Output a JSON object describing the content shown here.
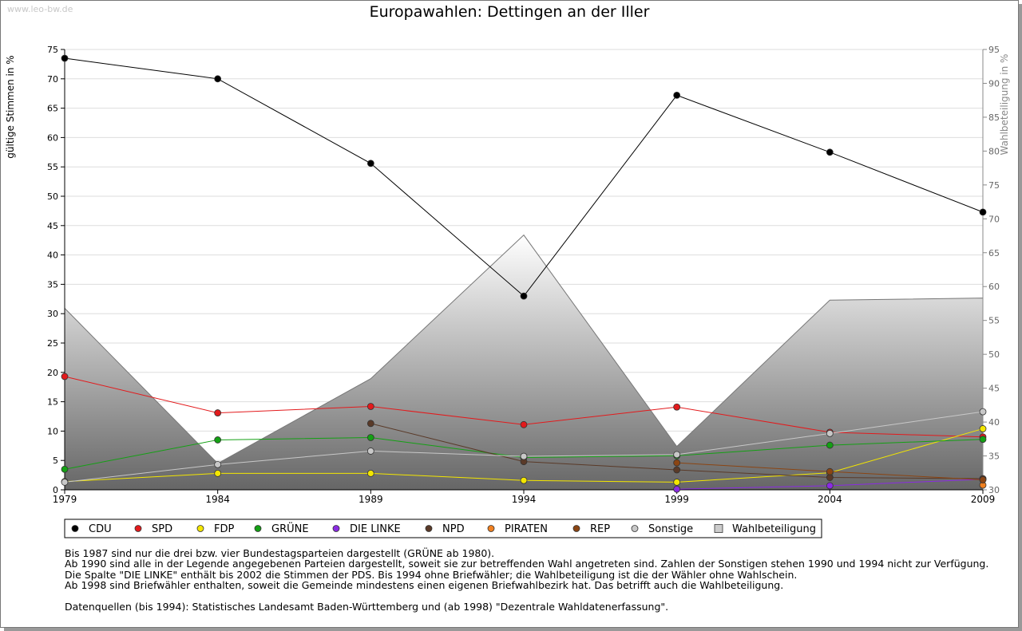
{
  "watermark": "www.leo-bw.de",
  "title": "Europawahlen: Dettingen an der Iller",
  "y_left_label": "gültige Stimmen in %",
  "y_right_label": "Wahlbeteiligung in %",
  "colors": {
    "CDU": "#000000",
    "SPD": "#e31a1c",
    "FDP": "#f3e600",
    "GRÜNE": "#14a014",
    "DIE LINKE": "#8a2be2",
    "NPD": "#5a3a28",
    "PIRATEN": "#f08020",
    "REP": "#8b4513",
    "Sonstige": "#c8c8c8",
    "Wahlbeteiligung": "#cccccc"
  },
  "chart_data": {
    "type": "line",
    "title": "Europawahlen: Dettingen an der Iller",
    "xlabel": "",
    "ylabel": "gültige Stimmen in %",
    "y2label": "Wahlbeteiligung in %",
    "x": [
      1979,
      1984,
      1989,
      1994,
      1999,
      2004,
      2009
    ],
    "ylim": [
      0,
      75
    ],
    "y2lim": [
      30,
      95
    ],
    "yticks": [
      0,
      5,
      10,
      15,
      20,
      25,
      30,
      35,
      40,
      45,
      50,
      55,
      60,
      65,
      70,
      75
    ],
    "y2ticks": [
      30,
      35,
      40,
      45,
      50,
      55,
      60,
      65,
      70,
      75,
      80,
      85,
      90,
      95
    ],
    "grid": true,
    "legend_position": "bottom",
    "series": [
      {
        "name": "CDU",
        "axis": "left",
        "values": [
          73.5,
          70.0,
          55.6,
          33.0,
          67.2,
          57.5,
          47.3
        ]
      },
      {
        "name": "SPD",
        "axis": "left",
        "values": [
          19.3,
          13.1,
          14.2,
          11.1,
          14.1,
          9.8,
          9.0
        ]
      },
      {
        "name": "FDP",
        "axis": "left",
        "values": [
          1.4,
          2.8,
          2.8,
          1.6,
          1.3,
          2.9,
          10.4
        ]
      },
      {
        "name": "GRÜNE",
        "axis": "left",
        "values": [
          3.5,
          8.5,
          8.9,
          5.5,
          5.8,
          7.6,
          8.6
        ]
      },
      {
        "name": "DIE LINKE",
        "axis": "left",
        "values": [
          null,
          null,
          null,
          null,
          0.1,
          0.7,
          1.8
        ]
      },
      {
        "name": "NPD",
        "axis": "left",
        "values": [
          null,
          null,
          11.3,
          4.8,
          3.4,
          2.1,
          1.9
        ]
      },
      {
        "name": "PIRATEN",
        "axis": "left",
        "values": [
          null,
          null,
          null,
          null,
          null,
          null,
          0.8
        ]
      },
      {
        "name": "REP",
        "axis": "left",
        "values": [
          null,
          null,
          null,
          null,
          4.6,
          3.1,
          1.7
        ]
      },
      {
        "name": "Sonstige",
        "axis": "left",
        "values": [
          1.3,
          4.3,
          6.6,
          5.7,
          6.0,
          9.6,
          13.3
        ]
      },
      {
        "name": "Wahlbeteiligung",
        "axis": "right",
        "type": "area",
        "values": [
          56.8,
          33.9,
          46.4,
          67.6,
          36.4,
          58.0,
          58.3
        ]
      }
    ]
  },
  "notes": [
    "Bis 1987 sind nur die drei bzw. vier Bundestagsparteien dargestellt (GRÜNE ab 1980).",
    "Ab 1990 sind alle in der Legende angegebenen Parteien dargestellt, soweit sie zur betreffenden Wahl angetreten sind. Zahlen der Sonstigen stehen 1990 und 1994 nicht zur Verfügung.",
    "Die Spalte \"DIE LINKE\" enthält bis 2002 die Stimmen der PDS. Bis 1994 ohne Briefwähler; die Wahlbeteiligung ist die der Wähler ohne Wahlschein.",
    "Ab 1998 sind Briefwähler enthalten, soweit die Gemeinde mindestens einen eigenen Briefwahlbezirk hat. Das betrifft auch die Wahlbeteiligung."
  ],
  "source": "Datenquellen (bis 1994): Statistisches Landesamt Baden-Württemberg und (ab 1998) \"Dezentrale Wahldatenerfassung\"."
}
